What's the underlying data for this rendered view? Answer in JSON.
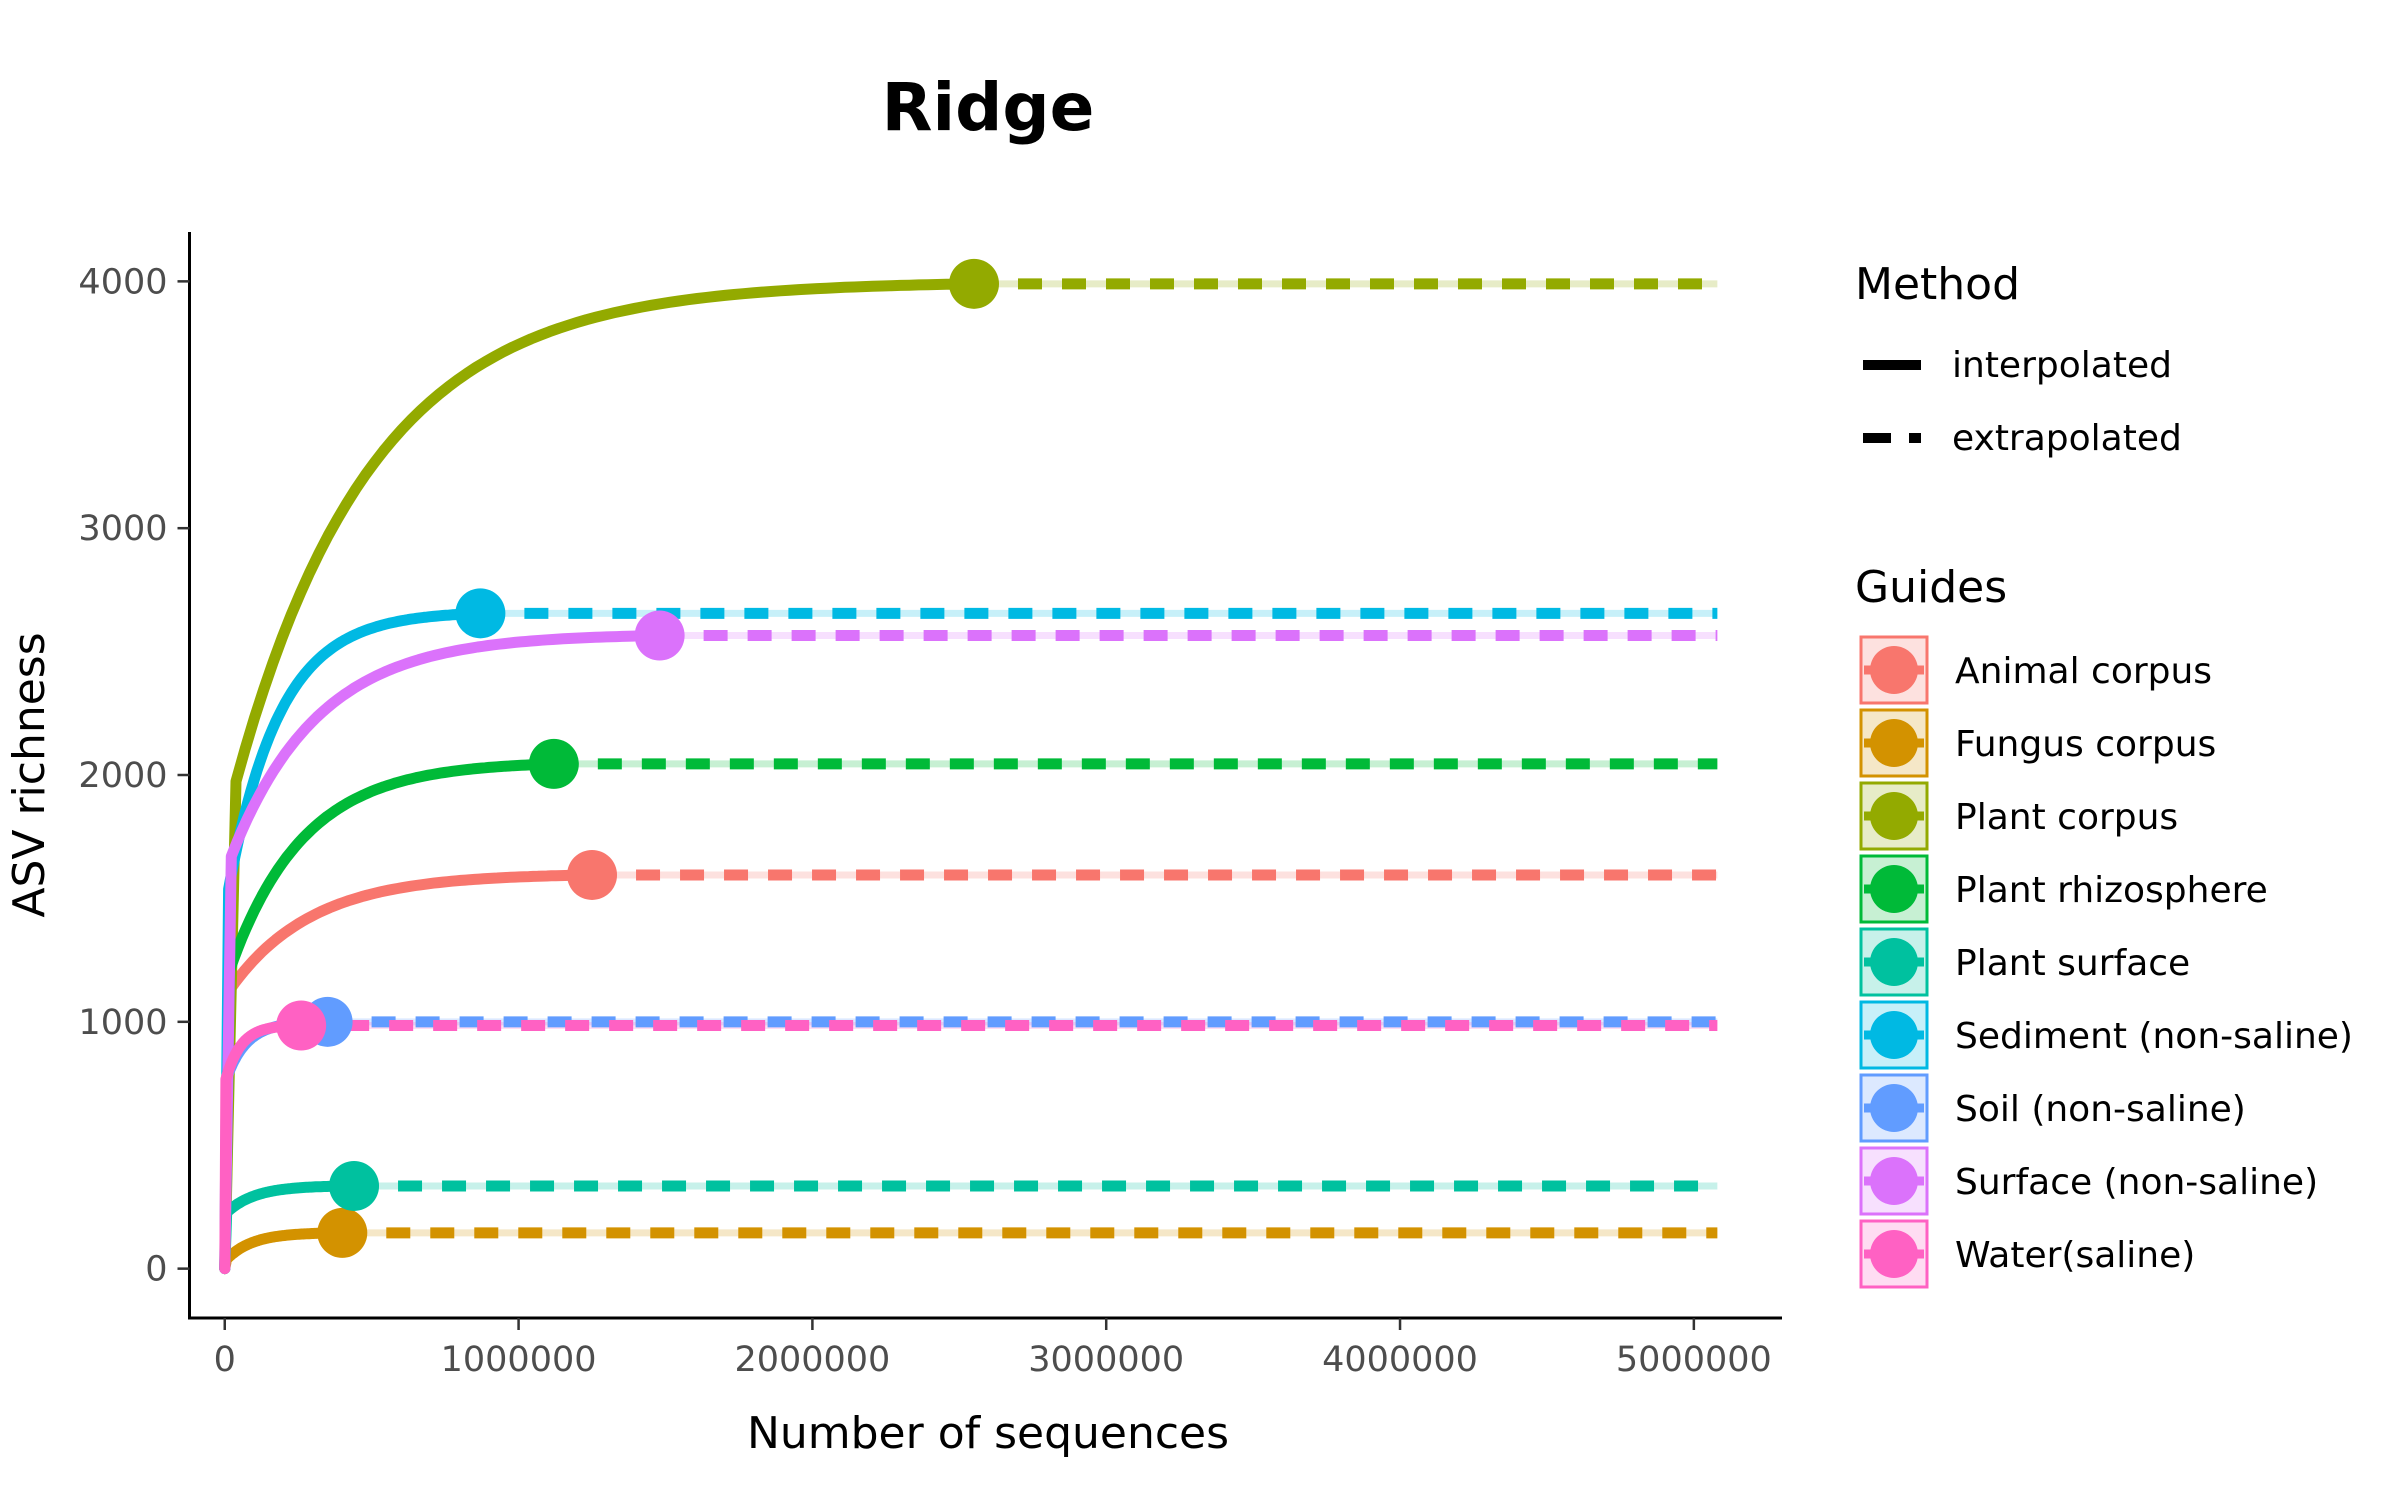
{
  "chart_data": {
    "type": "line",
    "title": "Ridge",
    "xlabel": "Number of sequences",
    "ylabel": "ASV richness",
    "xlim": [
      -120000,
      5300000
    ],
    "ylim": [
      -200,
      4200
    ],
    "xticks": [
      0,
      1000000,
      2000000,
      3000000,
      4000000,
      5000000
    ],
    "xtick_labels": [
      "0",
      "1000000",
      "2000000",
      "3000000",
      "4000000",
      "5000000"
    ],
    "yticks": [
      0,
      1000,
      2000,
      3000,
      4000
    ],
    "ytick_labels": [
      "0",
      "1000",
      "2000",
      "3000",
      "4000"
    ],
    "x_extrapolation_end": 5080000,
    "grid": false,
    "legend_placement": "right",
    "method_legend": {
      "title": "Method",
      "items": [
        {
          "label": "interpolated",
          "style": "solid"
        },
        {
          "label": "extrapolated",
          "style": "dashed"
        }
      ]
    },
    "series_legend_title": "Guides",
    "series": [
      {
        "name": "Animal corpus",
        "color": "#F8766D",
        "observed_x": 1250000,
        "observed_y": 1595,
        "initial_y": 1100,
        "curve_rate": 4.5
      },
      {
        "name": "Fungus corpus",
        "color": "#D39200",
        "observed_x": 400000,
        "observed_y": 145,
        "initial_y": 30,
        "curve_rate": 4.5
      },
      {
        "name": "Plant corpus",
        "color": "#93AA00",
        "observed_x": 2550000,
        "observed_y": 3990,
        "initial_y": 1800,
        "curve_rate": 5.5
      },
      {
        "name": "Plant rhizosphere",
        "color": "#00BA38",
        "observed_x": 1120000,
        "observed_y": 2045,
        "initial_y": 1150,
        "curve_rate": 4.5
      },
      {
        "name": "Plant surface",
        "color": "#00C19F",
        "observed_x": 440000,
        "observed_y": 335,
        "initial_y": 220,
        "curve_rate": 4.5
      },
      {
        "name": "Sediment (non-saline)",
        "color": "#00B9E3",
        "observed_x": 870000,
        "observed_y": 2655,
        "initial_y": 1450,
        "curve_rate": 5.0
      },
      {
        "name": "Soil (non-saline)",
        "color": "#619CFF",
        "observed_x": 350000,
        "observed_y": 1000,
        "initial_y": 750,
        "curve_rate": 5.0
      },
      {
        "name": "Surface (non-saline)",
        "color": "#DB72FB",
        "observed_x": 1480000,
        "observed_y": 2565,
        "initial_y": 1600,
        "curve_rate": 5.0
      },
      {
        "name": "Water(saline)",
        "color": "#FF61C3",
        "observed_x": 260000,
        "observed_y": 985,
        "initial_y": 750,
        "curve_rate": 5.0
      }
    ]
  }
}
